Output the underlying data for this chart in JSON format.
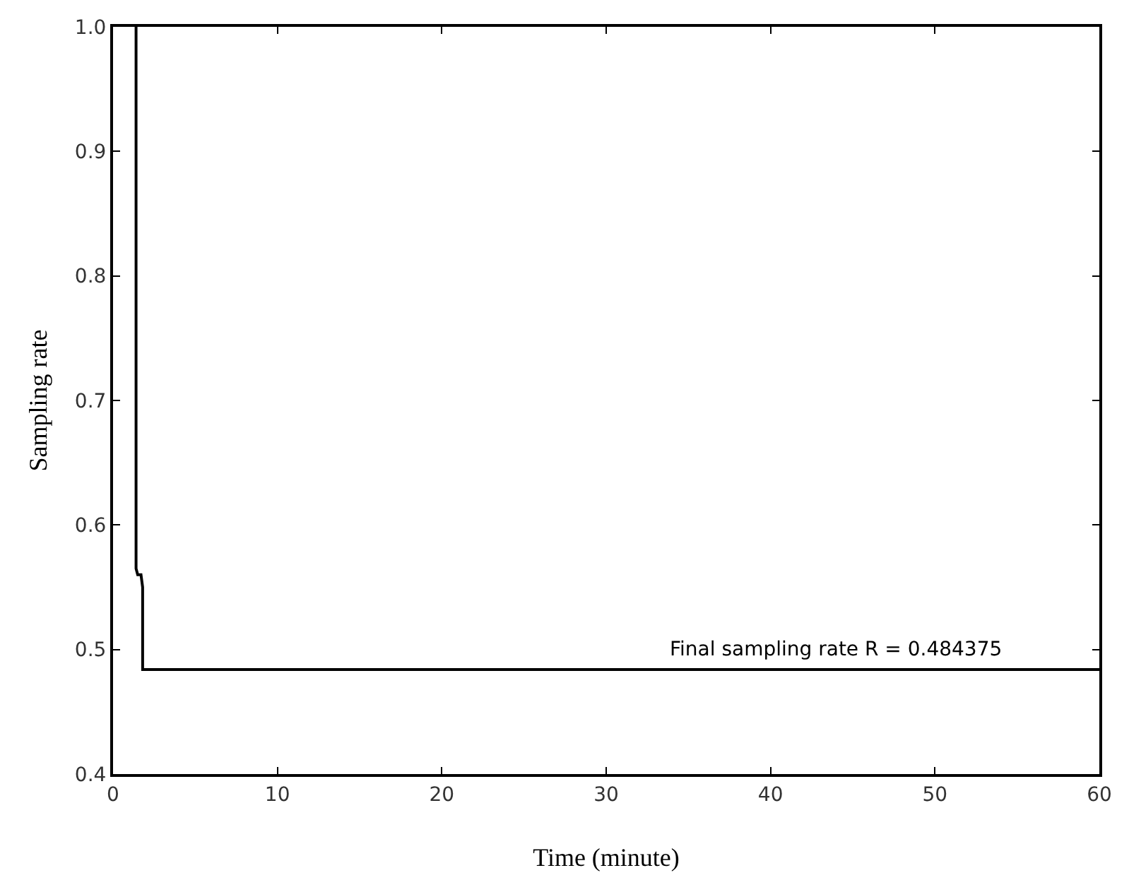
{
  "chart_data": {
    "type": "line",
    "xlabel": "Time (minute)",
    "ylabel": "Sampling rate",
    "x": [
      1.4,
      1.4,
      1.5,
      1.7,
      1.8,
      1.8,
      60
    ],
    "series": [
      {
        "color": "#000000",
        "values": [
          1.0,
          0.565,
          0.56,
          0.56,
          0.55,
          0.484,
          0.484
        ]
      }
    ],
    "xlim": [
      0,
      60
    ],
    "xticks": [
      0,
      10,
      20,
      30,
      40,
      50,
      60
    ],
    "ylim": [
      0.4,
      1.0
    ],
    "yticks": [
      {
        "value": 0.4,
        "label": "0.4"
      },
      {
        "value": 0.5,
        "label": "0.5"
      },
      {
        "value": 0.6,
        "label": "0.6"
      },
      {
        "value": 0.7,
        "label": "0.7"
      },
      {
        "value": 0.8,
        "label": "0.8"
      },
      {
        "value": 0.9,
        "label": "0.9"
      },
      {
        "value": 1.0,
        "label": "1.0"
      }
    ],
    "annotations": [
      {
        "text": "Final sampling rate R = 0.484375",
        "x": 44,
        "y": 0.484
      }
    ],
    "grid": false,
    "marker": "none",
    "line_style": "solid"
  }
}
